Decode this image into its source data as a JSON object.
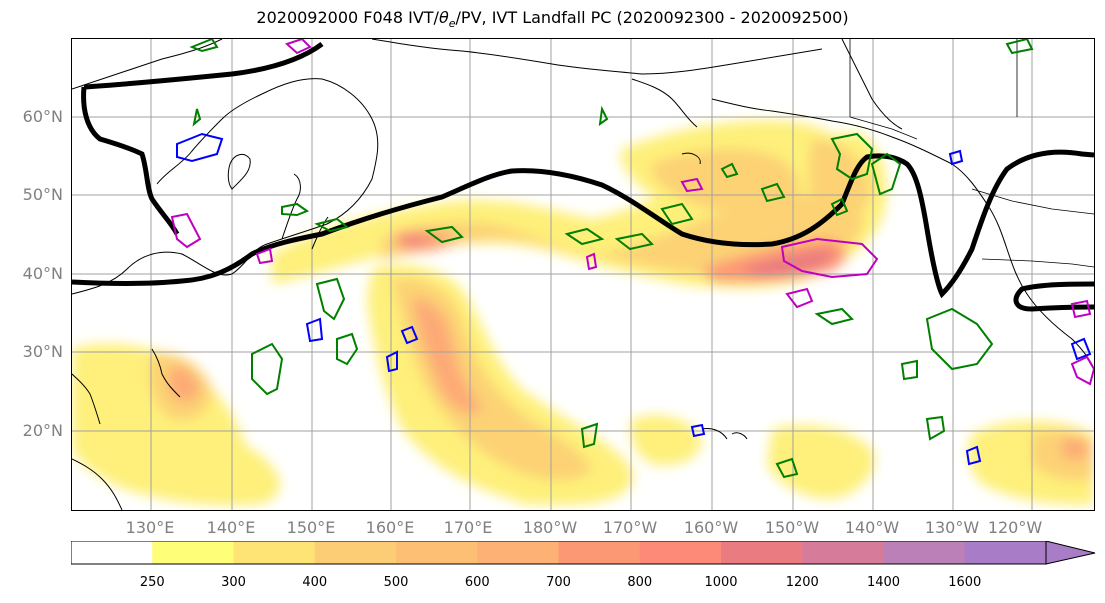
{
  "title_prefix": "2020092000 F048 IVT/",
  "title_theta": "θ",
  "title_sub": "e",
  "title_suffix": "/PV, IVT Landfall PC (2020092300 - 2020092500)",
  "lat_labels": [
    "60°N",
    "50°N",
    "40°N",
    "30°N",
    "20°N"
  ],
  "lon_labels": [
    "130°E",
    "140°E",
    "150°E",
    "160°E",
    "170°E",
    "180°W",
    "170°W",
    "160°W",
    "150°W",
    "140°W",
    "130°W",
    "120°W"
  ],
  "colorbar": {
    "levels": [
      "250",
      "300",
      "400",
      "500",
      "600",
      "700",
      "800",
      "1000",
      "1200",
      "1400",
      "1600"
    ],
    "colors": [
      "#ffffff",
      "#fefe78",
      "#fde475",
      "#fccd74",
      "#fcbf74",
      "#fdb174",
      "#fd9874",
      "#fd8978",
      "#ea7b80",
      "#d67b99",
      "#bb80b8",
      "#a87cc6"
    ],
    "extend": "max"
  },
  "legend_colors": {
    "pc_contour": "#000000",
    "theta_e": "#008000",
    "pv_blue": "#0000ff",
    "pv_magenta": "#c000c0"
  }
}
